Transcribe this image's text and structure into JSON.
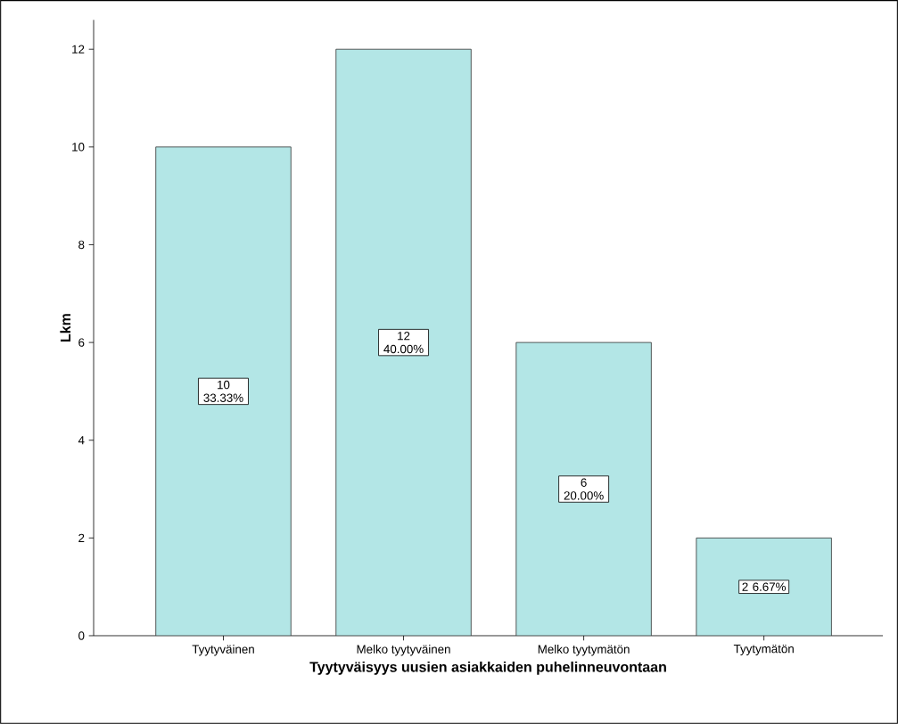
{
  "chart_data": {
    "type": "bar",
    "xlabel": "Tyytyväisyys uusien asiakkaiden puhelinneuvontaan",
    "ylabel": "Lkm",
    "categories": [
      "Tyytyväinen",
      "Melko tyytyväinen",
      "Melko tyytymätön",
      "Tyytymätön"
    ],
    "values": [
      10,
      12,
      6,
      2
    ],
    "color": "#b3e6e6",
    "value_labels": [
      "10 33.33%",
      "12 40.00%",
      "6 20.00%",
      "2 6.67%"
    ],
    "ylim": [
      0,
      12.6
    ],
    "yticks": [
      0,
      2,
      4,
      6,
      8,
      10,
      12
    ],
    "grid": false
  }
}
